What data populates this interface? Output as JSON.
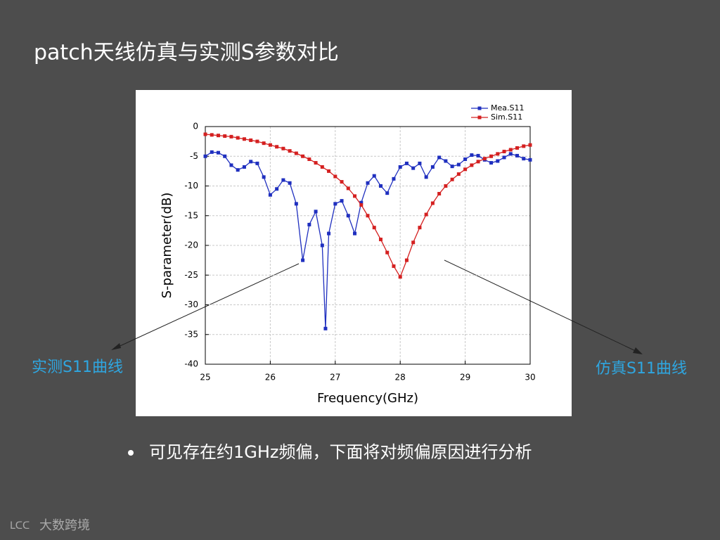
{
  "slide_title": "patch天线仿真与实测S参数对比",
  "bullet": "可见存在约1GHz频偏，下面将对频偏原因进行分析",
  "logo": "大数跨境",
  "chart_data": {
    "type": "line",
    "x_label": "Frequency(GHz)",
    "y_label": "S-parameter(dB)",
    "xlim": [
      25,
      30
    ],
    "xticks": [
      25,
      26,
      27,
      28,
      29,
      30
    ],
    "ylim": [
      -40,
      0
    ],
    "yticks": [
      0,
      -5,
      -10,
      -15,
      -20,
      -25,
      -30,
      -35,
      -40
    ],
    "grid": true,
    "legend": "upper right",
    "annotations": [
      "实测S11曲线",
      "仿真S11曲线"
    ],
    "series": [
      {
        "name": "Mea.S11",
        "color": "#1f2fbf",
        "x": [
          25.0,
          25.1,
          25.2,
          25.3,
          25.4,
          25.5,
          25.6,
          25.7,
          25.8,
          25.9,
          26.0,
          26.1,
          26.2,
          26.3,
          26.4,
          26.5,
          26.6,
          26.7,
          26.8,
          26.85,
          26.9,
          27.0,
          27.1,
          27.2,
          27.3,
          27.4,
          27.5,
          27.6,
          27.7,
          27.8,
          27.9,
          28.0,
          28.1,
          28.2,
          28.3,
          28.4,
          28.5,
          28.6,
          28.7,
          28.8,
          28.9,
          29.0,
          29.1,
          29.2,
          29.3,
          29.4,
          29.5,
          29.6,
          29.7,
          29.8,
          29.9,
          30.0
        ],
        "values": [
          -5,
          -4.3,
          -4.4,
          -5.0,
          -6.5,
          -7.3,
          -6.8,
          -5.9,
          -6.2,
          -8.5,
          -11.5,
          -10.5,
          -9.0,
          -9.5,
          -13,
          -22.5,
          -16.5,
          -14.3,
          -20,
          -34,
          -18,
          -13,
          -12.5,
          -15,
          -18,
          -12.8,
          -9.5,
          -8.3,
          -10,
          -11.2,
          -8.8,
          -6.8,
          -6.2,
          -7.0,
          -6.2,
          -8.5,
          -6.8,
          -5.2,
          -5.8,
          -6.7,
          -6.4,
          -5.5,
          -4.8,
          -4.9,
          -5.6,
          -6.1,
          -5.8,
          -5.2,
          -4.6,
          -4.9,
          -5.4,
          -5.6
        ]
      },
      {
        "name": "Sim.S11",
        "color": "#d42020",
        "x": [
          25.0,
          25.1,
          25.2,
          25.3,
          25.4,
          25.5,
          25.6,
          25.7,
          25.8,
          25.9,
          26.0,
          26.1,
          26.2,
          26.3,
          26.4,
          26.5,
          26.6,
          26.7,
          26.8,
          26.9,
          27.0,
          27.1,
          27.2,
          27.3,
          27.4,
          27.5,
          27.6,
          27.7,
          27.8,
          27.9,
          28.0,
          28.1,
          28.2,
          28.3,
          28.4,
          28.5,
          28.6,
          28.7,
          28.8,
          28.9,
          29.0,
          29.1,
          29.2,
          29.3,
          29.4,
          29.5,
          29.6,
          29.7,
          29.8,
          29.9,
          30.0
        ],
        "values": [
          -1.3,
          -1.4,
          -1.5,
          -1.6,
          -1.7,
          -1.9,
          -2.1,
          -2.3,
          -2.5,
          -2.8,
          -3.1,
          -3.4,
          -3.7,
          -4.1,
          -4.5,
          -5.0,
          -5.5,
          -6.1,
          -6.8,
          -7.5,
          -8.4,
          -9.3,
          -10.4,
          -11.7,
          -13.2,
          -15.0,
          -17.0,
          -19.0,
          -21.2,
          -23.5,
          -25.3,
          -22.5,
          -19.5,
          -17.0,
          -14.8,
          -12.9,
          -11.3,
          -10.0,
          -8.9,
          -8.0,
          -7.2,
          -6.5,
          -5.9,
          -5.4,
          -5.0,
          -4.6,
          -4.2,
          -3.9,
          -3.6,
          -3.3,
          -3.1
        ]
      }
    ]
  }
}
